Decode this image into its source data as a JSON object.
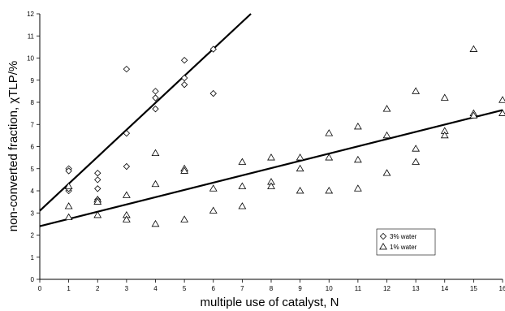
{
  "chart_data": {
    "type": "scatter",
    "xlabel": "multiple use of catalyst, N",
    "ylabel": "non-converted fraction, χTLP/%",
    "xlim": [
      0,
      16
    ],
    "ylim": [
      0,
      12
    ],
    "xticks": [
      "0",
      "1",
      "2",
      "3",
      "4",
      "5",
      "6",
      "7",
      "8",
      "9",
      "10",
      "11",
      "12",
      "13",
      "14",
      "15",
      "16"
    ],
    "yticks": [
      "0",
      "1",
      "2",
      "3",
      "4",
      "5",
      "6",
      "7",
      "8",
      "9",
      "10",
      "11",
      "12"
    ],
    "grid": false,
    "legend": "bottom-right",
    "series": [
      {
        "name": "3% water",
        "marker": "diamond",
        "points": [
          [
            1,
            5.0
          ],
          [
            1,
            4.9
          ],
          [
            1,
            4.0
          ],
          [
            1,
            4.1
          ],
          [
            2,
            4.8
          ],
          [
            2,
            4.5
          ],
          [
            2,
            4.1
          ],
          [
            2,
            3.6
          ],
          [
            3,
            9.5
          ],
          [
            3,
            6.6
          ],
          [
            3,
            5.1
          ],
          [
            4,
            8.5
          ],
          [
            4,
            8.2
          ],
          [
            4,
            7.7
          ],
          [
            5,
            9.9
          ],
          [
            5,
            9.1
          ],
          [
            5,
            8.8
          ],
          [
            6,
            10.4
          ],
          [
            6,
            8.4
          ]
        ],
        "trendline": {
          "x": [
            0,
            7.3
          ],
          "y": [
            3.1,
            12
          ]
        }
      },
      {
        "name": "1% water",
        "marker": "triangle",
        "points": [
          [
            1,
            4.2
          ],
          [
            1,
            3.3
          ],
          [
            1,
            2.8
          ],
          [
            2,
            3.6
          ],
          [
            2,
            3.5
          ],
          [
            2,
            2.9
          ],
          [
            3,
            3.8
          ],
          [
            3,
            2.9
          ],
          [
            3,
            2.7
          ],
          [
            4,
            5.7
          ],
          [
            4,
            4.3
          ],
          [
            4,
            2.5
          ],
          [
            5,
            5.0
          ],
          [
            5,
            4.9
          ],
          [
            5,
            2.7
          ],
          [
            6,
            4.1
          ],
          [
            6,
            3.1
          ],
          [
            7,
            5.3
          ],
          [
            7,
            4.2
          ],
          [
            7,
            3.3
          ],
          [
            8,
            5.5
          ],
          [
            8,
            4.4
          ],
          [
            8,
            4.2
          ],
          [
            9,
            5.5
          ],
          [
            9,
            5.0
          ],
          [
            9,
            4.0
          ],
          [
            10,
            6.6
          ],
          [
            10,
            5.5
          ],
          [
            10,
            4.0
          ],
          [
            11,
            6.9
          ],
          [
            11,
            5.4
          ],
          [
            11,
            4.1
          ],
          [
            12,
            7.7
          ],
          [
            12,
            6.5
          ],
          [
            12,
            4.8
          ],
          [
            13,
            8.5
          ],
          [
            13,
            5.9
          ],
          [
            13,
            5.3
          ],
          [
            14,
            8.2
          ],
          [
            14,
            6.7
          ],
          [
            14,
            6.5
          ],
          [
            15,
            10.4
          ],
          [
            15,
            7.5
          ],
          [
            15,
            7.4
          ],
          [
            16,
            8.1
          ],
          [
            16,
            7.5
          ]
        ],
        "trendline": {
          "x": [
            0,
            16
          ],
          "y": [
            2.4,
            7.65
          ]
        }
      }
    ]
  }
}
